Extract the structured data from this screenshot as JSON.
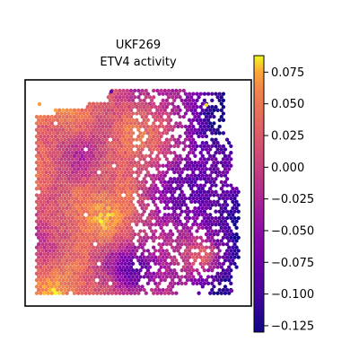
{
  "chart_data": {
    "type": "heatmap",
    "title_lines": [
      "UKF269",
      "ETV4 activity"
    ],
    "xlabel": "",
    "ylabel": "",
    "colormap": "plasma",
    "colorbar": {
      "vmin": -0.13,
      "vmax": 0.088,
      "ticks": [
        0.075,
        0.05,
        0.025,
        0.0,
        -0.025,
        -0.05,
        -0.075,
        -0.1,
        -0.125
      ],
      "tick_labels": [
        "0.075",
        "0.050",
        "0.025",
        "0.000",
        "−0.025",
        "−0.050",
        "−0.075",
        "−0.100",
        "−0.125"
      ]
    },
    "grid": false,
    "legend": "colorbar-right",
    "description_of_values": "ETV4 activity per spatial spot; higher values (orange/yellow) dominate the left half of the tissue, lower values (purple/navy) dominate the right half, with many missing spots on the right"
  }
}
